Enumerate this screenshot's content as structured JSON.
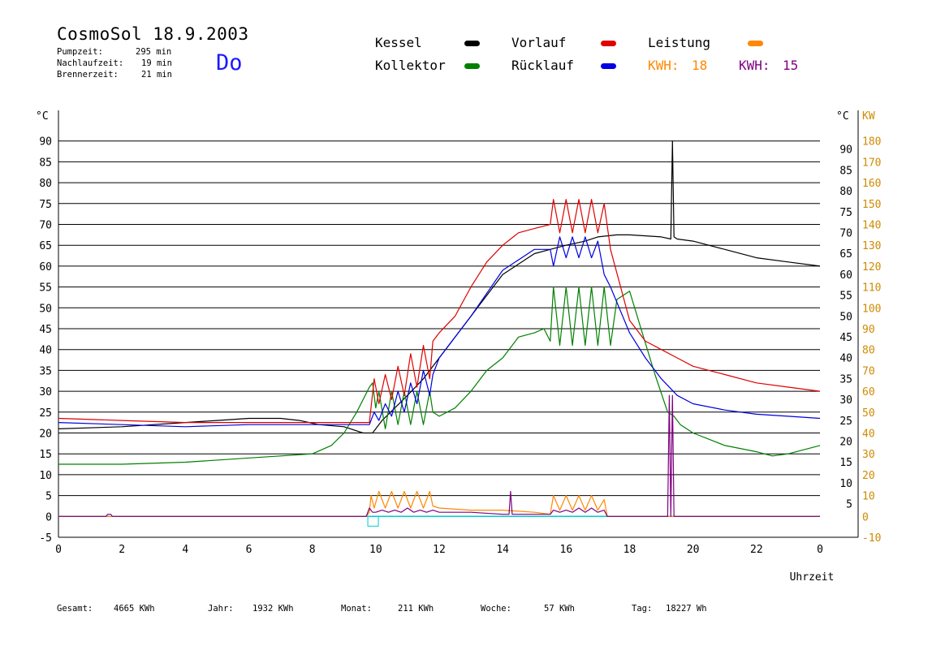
{
  "header": {
    "title": "CosmoSol 18.9.2003",
    "weekday": "Do",
    "stats": [
      {
        "label": "Pumpzeit:",
        "value": "295 min"
      },
      {
        "label": "Nachlaufzeit:",
        "value": "19 min"
      },
      {
        "label": "Brennerzeit:",
        "value": "21 min"
      }
    ]
  },
  "legend": {
    "kessel": "Kessel",
    "kollektor": "Kollektor",
    "vorlauf": "Vorlauf",
    "ruecklauf": "Rücklauf",
    "leistung": "Leistung",
    "kwh1_label": "KWH:",
    "kwh1_value": "18",
    "kwh2_label": "KWH:",
    "kwh2_value": "15"
  },
  "colors": {
    "kessel": "#000000",
    "kollektor": "#008000",
    "vorlauf": "#e00000",
    "ruecklauf": "#0000e0",
    "leistung": "#ff8800",
    "kwh2": "#800080",
    "baseline": "#00cccc",
    "right_axis": "#d08a00"
  },
  "footer": {
    "gesamt_label": "Gesamt:",
    "gesamt_value": "4665 KWh",
    "jahr_label": "Jahr:",
    "jahr_value": "1932 KWh",
    "monat_label": "Monat:",
    "monat_value": "211 KWh",
    "woche_label": "Woche:",
    "woche_value": "57 KWh",
    "tag_label": "Tag:",
    "tag_value": "18227 Wh"
  },
  "chart_data": {
    "type": "line",
    "xlabel": "Uhrzeit",
    "ylabel": "°C",
    "ylabel_right_1": "°C",
    "ylabel_right_2": "KW",
    "xlim": [
      0,
      24
    ],
    "ylim": [
      -5,
      95
    ],
    "y2lim": [
      -10,
      190
    ],
    "grid": true,
    "x_ticks": [
      "0",
      "2",
      "4",
      "6",
      "8",
      "10",
      "12",
      "14",
      "16",
      "18",
      "20",
      "22",
      "0"
    ],
    "y_ticks": [
      -5,
      0,
      5,
      10,
      15,
      20,
      25,
      30,
      35,
      40,
      45,
      50,
      55,
      60,
      65,
      70,
      75,
      80,
      85,
      90
    ],
    "y_ticks_right": [
      5,
      10,
      15,
      20,
      25,
      30,
      35,
      40,
      45,
      50,
      55,
      60,
      65,
      70,
      75,
      80,
      85,
      90
    ],
    "y2_ticks": [
      -10,
      0,
      10,
      20,
      30,
      40,
      50,
      60,
      70,
      80,
      90,
      100,
      110,
      120,
      130,
      140,
      150,
      160,
      170,
      180
    ],
    "series": [
      {
        "name": "Kessel",
        "color": "#000000",
        "x": [
          0,
          2,
          4,
          5,
          6,
          7,
          7.6,
          8.2,
          9,
          9.6,
          9.9,
          10.2,
          10.6,
          11,
          11.5,
          12,
          13,
          14,
          15,
          15.5,
          16,
          16.6,
          17,
          17.6,
          18,
          19,
          19.3,
          19.35,
          19.4,
          19.5,
          20,
          21,
          22,
          23,
          24
        ],
        "y": [
          21,
          21.5,
          22.5,
          23,
          23.5,
          23.5,
          23,
          22,
          21.5,
          20,
          20,
          23,
          26,
          29,
          33,
          38,
          48,
          58,
          63,
          64,
          65,
          66,
          67,
          67.5,
          67.5,
          67,
          66.5,
          90,
          67,
          66.5,
          66,
          64,
          62,
          61,
          60
        ]
      },
      {
        "name": "Kollektor",
        "color": "#008000",
        "x": [
          0,
          2,
          4,
          6,
          7,
          8,
          8.6,
          9,
          9.4,
          9.8,
          9.9,
          10,
          10.1,
          10.3,
          10.5,
          10.7,
          10.9,
          11.1,
          11.3,
          11.5,
          11.7,
          11.8,
          12,
          12.5,
          13,
          13.5,
          14,
          14.5,
          15,
          15.3,
          15.5,
          15.6,
          15.8,
          16,
          16.2,
          16.4,
          16.6,
          16.8,
          17,
          17.2,
          17.4,
          17.6,
          18,
          18.4,
          18.8,
          19.2,
          19.4,
          19.6,
          20,
          21,
          22,
          22.5,
          23,
          24
        ],
        "y": [
          12.5,
          12.5,
          13,
          14,
          14.5,
          15,
          17,
          20,
          25,
          31,
          32,
          26,
          30,
          21,
          30,
          22,
          30,
          22,
          30,
          22,
          30,
          25,
          24,
          26,
          30,
          35,
          38,
          43,
          44,
          45,
          42,
          55,
          41,
          55,
          41,
          55,
          41,
          55,
          41,
          55,
          41,
          52,
          54,
          44,
          34,
          25,
          24,
          22,
          20,
          17,
          15.5,
          14.5,
          15,
          17
        ]
      },
      {
        "name": "Vorlauf",
        "color": "#e00000",
        "x": [
          0,
          2,
          4,
          6,
          8,
          9,
          9.8,
          9.95,
          10.1,
          10.3,
          10.5,
          10.7,
          10.9,
          11.1,
          11.3,
          11.5,
          11.7,
          11.8,
          12,
          12.5,
          13,
          13.5,
          14,
          14.5,
          15,
          15.5,
          15.6,
          15.8,
          16,
          16.2,
          16.4,
          16.6,
          16.8,
          17,
          17.2,
          17.4,
          18,
          18.5,
          19,
          19.5,
          20,
          21,
          22,
          23,
          24
        ],
        "y": [
          23.5,
          23,
          22.5,
          22.5,
          22.5,
          22.5,
          22.5,
          33,
          27,
          34,
          28,
          36,
          29,
          39,
          31,
          41,
          33,
          42,
          44,
          48,
          55,
          61,
          65,
          68,
          69,
          70,
          76,
          68,
          76,
          68,
          76,
          68,
          76,
          68,
          75,
          64,
          47,
          42,
          40,
          38,
          36,
          34,
          32,
          31,
          30
        ]
      },
      {
        "name": "Rücklauf",
        "color": "#0000e0",
        "x": [
          0,
          2,
          4,
          6,
          8,
          9,
          9.8,
          9.95,
          10.1,
          10.3,
          10.5,
          10.7,
          10.9,
          11.1,
          11.3,
          11.5,
          11.7,
          11.8,
          12,
          13,
          14,
          15,
          15.5,
          15.6,
          15.8,
          16,
          16.2,
          16.4,
          16.6,
          16.8,
          17,
          17.2,
          17.4,
          18,
          18.5,
          19,
          19.5,
          20,
          21,
          22,
          23,
          24
        ],
        "y": [
          22.5,
          22,
          21.5,
          22,
          22,
          22,
          22,
          25,
          23,
          27,
          24,
          30,
          25,
          32,
          27,
          35,
          29,
          34,
          38,
          48,
          59,
          64,
          64,
          60,
          67,
          62,
          67,
          62,
          67,
          62,
          66,
          58,
          55,
          44,
          38,
          33,
          29,
          27,
          25.5,
          24.5,
          24,
          23.5
        ]
      },
      {
        "name": "Leistung",
        "color": "#ff8800",
        "axis": "right",
        "x": [
          0,
          9.7,
          9.8,
          9.85,
          9.95,
          10.1,
          10.3,
          10.5,
          10.7,
          10.9,
          11.1,
          11.3,
          11.5,
          11.7,
          11.8,
          12,
          13,
          14,
          15,
          15.5,
          15.6,
          15.8,
          16,
          16.2,
          16.4,
          16.6,
          16.8,
          17,
          17.2,
          17.3,
          24
        ],
        "y": [
          0,
          0,
          2,
          10,
          4,
          12,
          4,
          12,
          4,
          12,
          4,
          12,
          4,
          12,
          5,
          4,
          3,
          3,
          2,
          1,
          10,
          3,
          10,
          3,
          10,
          3,
          10,
          3,
          8,
          0,
          0
        ]
      },
      {
        "name": "KWH 2",
        "color": "#800080",
        "axis": "right",
        "x": [
          0,
          1.5,
          1.55,
          1.65,
          1.7,
          9.7,
          9.8,
          9.9,
          10,
          10.2,
          10.4,
          10.6,
          10.8,
          11,
          11.2,
          11.4,
          11.6,
          11.8,
          12,
          13,
          14,
          14.2,
          14.25,
          14.3,
          14.6,
          15.5,
          15.6,
          15.8,
          16,
          16.2,
          16.4,
          16.6,
          16.8,
          17,
          17.2,
          17.3,
          19.2,
          19.25,
          19.3,
          19.35,
          19.4,
          24
        ],
        "y": [
          0,
          0,
          1,
          1,
          0,
          0,
          4,
          2,
          2,
          3,
          2,
          3,
          2,
          4,
          2,
          3,
          2,
          3,
          2,
          2,
          1,
          1,
          12,
          1,
          1,
          1,
          3,
          2,
          3,
          2,
          4,
          2,
          4,
          2,
          3,
          0,
          0,
          58,
          0,
          58,
          0,
          0
        ]
      }
    ],
    "baseline": {
      "y": 0,
      "color": "#00cccc"
    }
  }
}
